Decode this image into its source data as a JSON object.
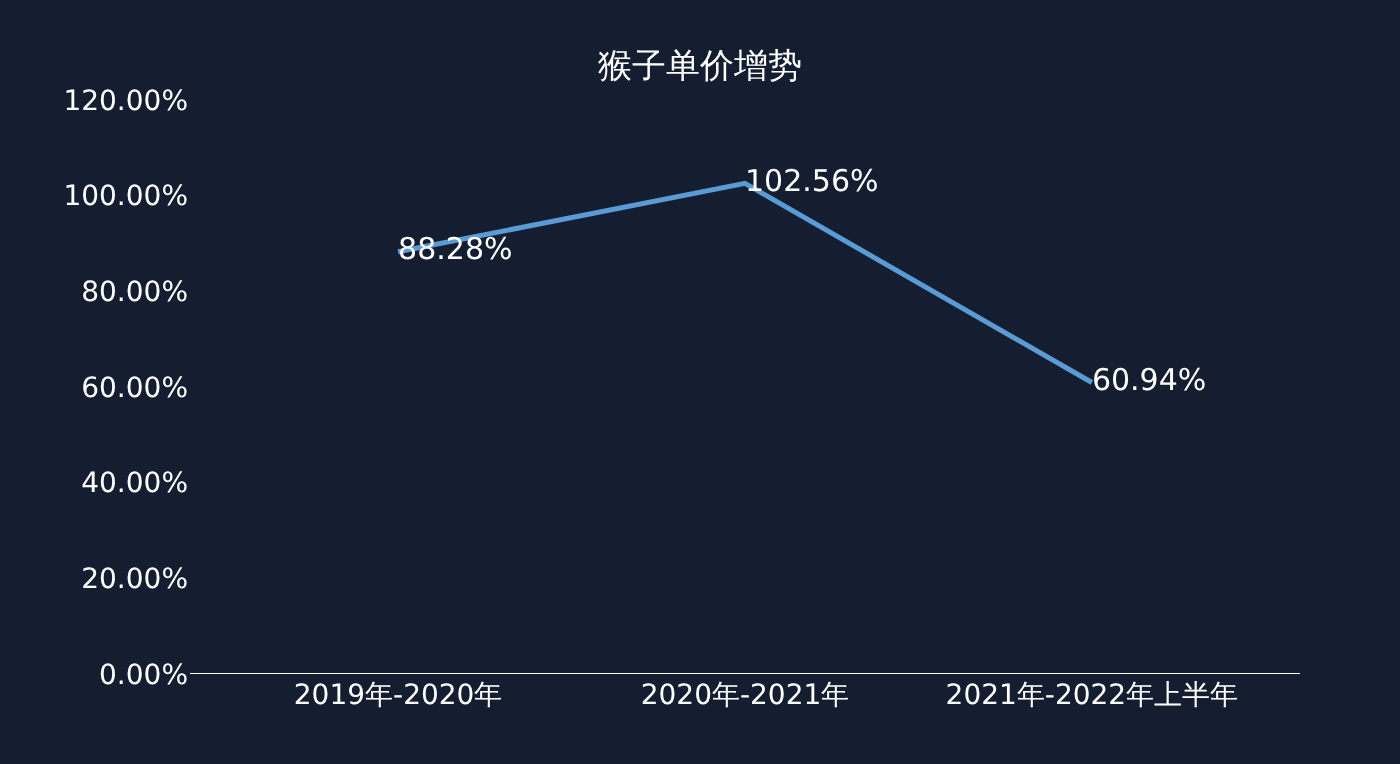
{
  "chart_data": {
    "type": "line",
    "title": "猴子单价增势",
    "categories": [
      "2019年-2020年",
      "2020年-2021年",
      "2021年-2022年上半年"
    ],
    "series": [
      {
        "color": "#5b9bd5",
        "values": [
          88.28,
          102.56,
          60.94
        ]
      }
    ],
    "value_labels": [
      "88.28%",
      "102.56%",
      "60.94%"
    ],
    "ylim": [
      0,
      120
    ],
    "yticks": [
      {
        "value": 0,
        "label": "0.00%"
      },
      {
        "value": 20,
        "label": "20.00%"
      },
      {
        "value": 40,
        "label": "40.00%"
      },
      {
        "value": 60,
        "label": "60.00%"
      },
      {
        "value": 80,
        "label": "80.00%"
      },
      {
        "value": 100,
        "label": "100.00%"
      },
      {
        "value": 120,
        "label": "120.00%"
      }
    ],
    "marker": "none",
    "line_style": "solid",
    "legend": false,
    "grid": false
  }
}
